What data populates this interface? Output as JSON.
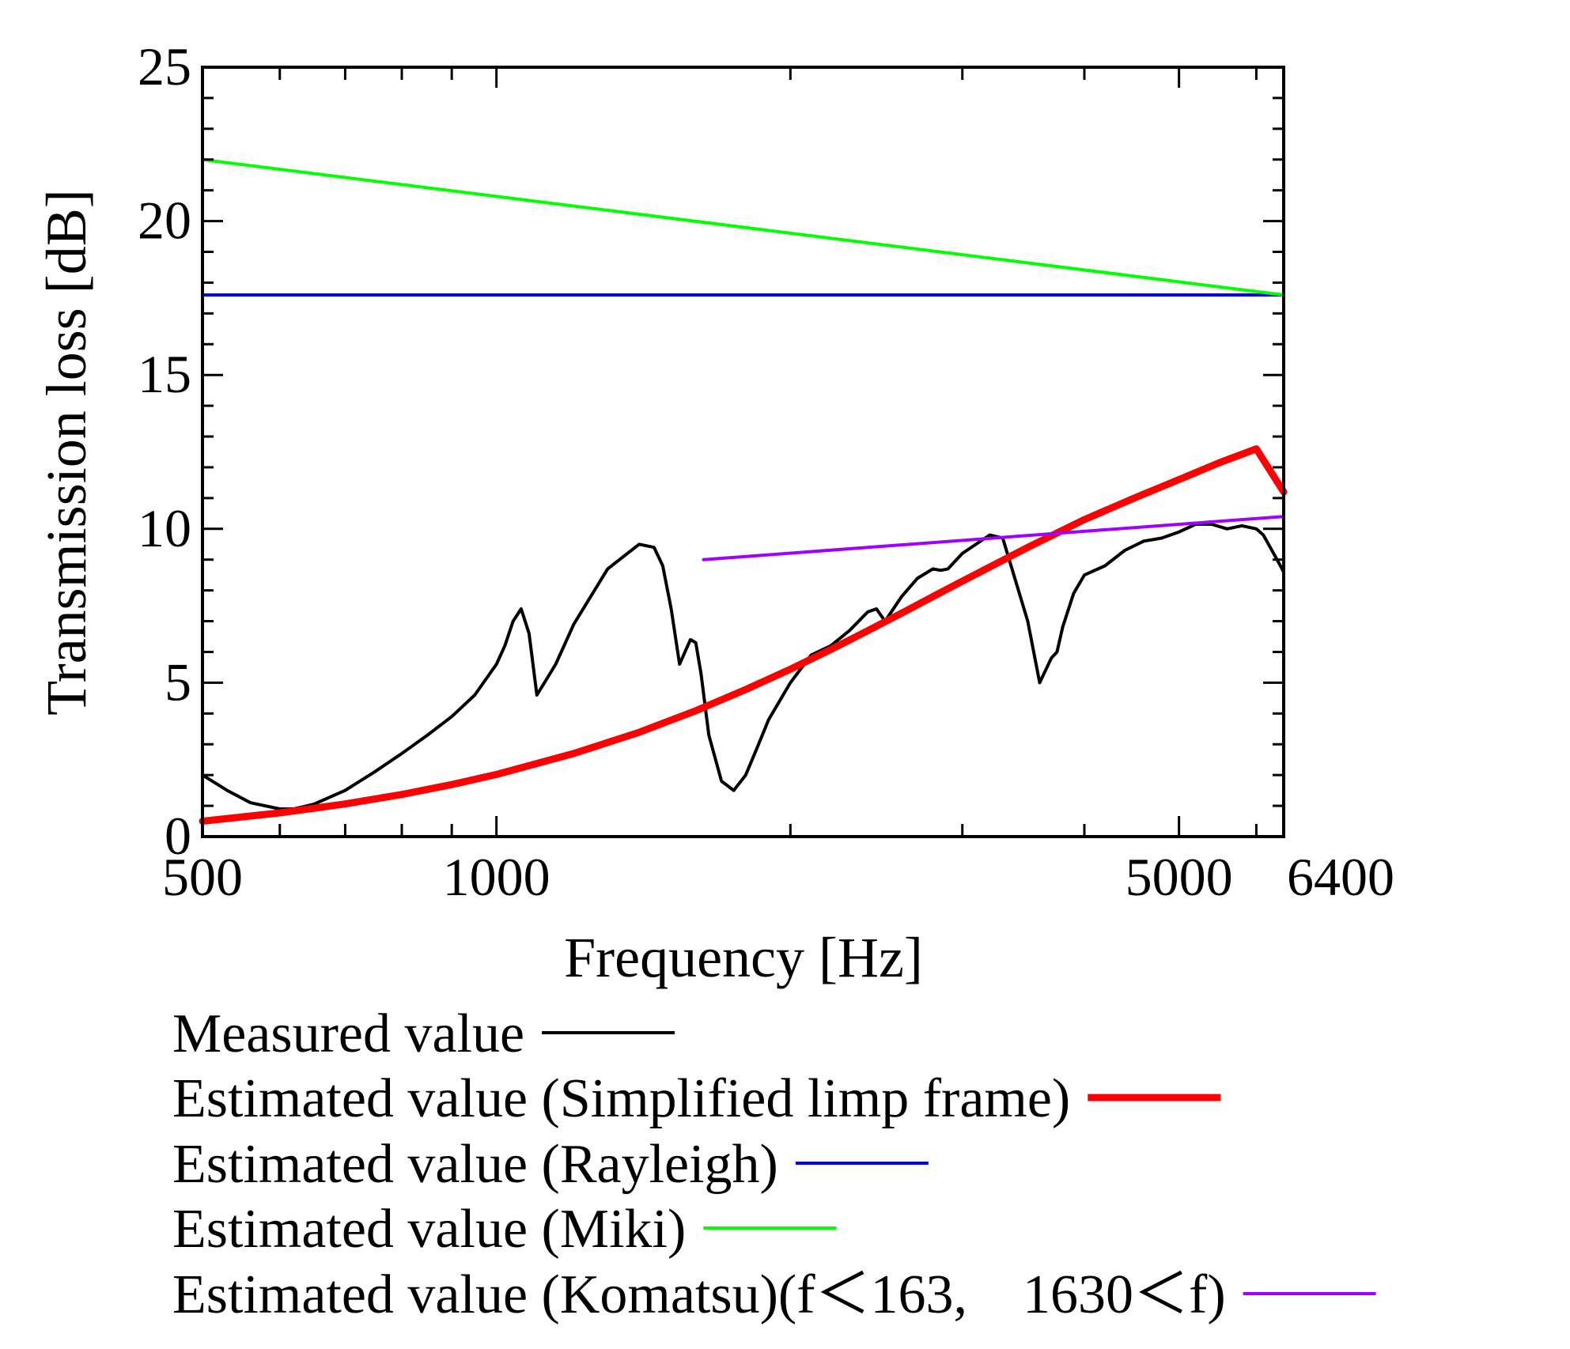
{
  "chart_data": {
    "type": "line",
    "xlabel": "Frequency [Hz]",
    "ylabel": "Transmission loss [dB]",
    "x_scale": "log",
    "xlim": [
      500,
      6400
    ],
    "ylim": [
      0,
      25
    ],
    "x_ticks_labeled": [
      500,
      1000,
      5000,
      6400
    ],
    "x_tick_labels": [
      "500",
      "1000",
      "5000",
      "6400"
    ],
    "x_ticks_minor": [
      600,
      700,
      800,
      900,
      2000,
      3000,
      4000,
      6000
    ],
    "y_ticks": [
      0,
      5,
      10,
      15,
      20,
      25
    ],
    "y_tick_labels": [
      "0",
      "5",
      "10",
      "15",
      "20",
      "25"
    ],
    "grid": false,
    "legend_position": "below",
    "series": [
      {
        "name": "Measured value",
        "color": "#000000",
        "x": [
          500,
          530,
          560,
          600,
          620,
          650,
          700,
          750,
          800,
          850,
          900,
          950,
          1000,
          1020,
          1040,
          1060,
          1080,
          1100,
          1150,
          1200,
          1300,
          1400,
          1450,
          1480,
          1510,
          1540,
          1580,
          1600,
          1620,
          1650,
          1700,
          1750,
          1800,
          1850,
          1900,
          2000,
          2100,
          2200,
          2300,
          2400,
          2450,
          2500,
          2600,
          2700,
          2800,
          2850,
          2900,
          3000,
          3200,
          3300,
          3500,
          3600,
          3700,
          3750,
          3800,
          3900,
          4000,
          4200,
          4400,
          4600,
          4800,
          5000,
          5200,
          5400,
          5600,
          5800,
          6000,
          6100,
          6200,
          6300,
          6400
        ],
        "y": [
          2.0,
          1.5,
          1.1,
          0.9,
          0.9,
          1.05,
          1.5,
          2.1,
          2.7,
          3.3,
          3.9,
          4.6,
          5.6,
          6.2,
          7.0,
          7.4,
          6.6,
          4.6,
          5.6,
          6.9,
          8.7,
          9.5,
          9.4,
          8.8,
          7.4,
          5.6,
          6.4,
          6.3,
          5.3,
          3.3,
          1.8,
          1.5,
          2.0,
          2.9,
          3.8,
          5.0,
          5.9,
          6.2,
          6.7,
          7.3,
          7.4,
          7.0,
          7.8,
          8.4,
          8.7,
          8.65,
          8.7,
          9.2,
          9.8,
          9.7,
          7.0,
          5.0,
          5.8,
          6.0,
          6.8,
          7.9,
          8.5,
          8.8,
          9.3,
          9.6,
          9.7,
          9.9,
          10.15,
          10.15,
          10.0,
          10.1,
          10.0,
          9.8,
          9.4,
          9.0,
          8.6
        ]
      },
      {
        "name": "Estimated value (Simplified limp frame)",
        "color": "#ff0000",
        "x": [
          500,
          600,
          700,
          800,
          900,
          1000,
          1200,
          1400,
          1600,
          1800,
          2000,
          2200,
          2400,
          2600,
          2800,
          3000,
          3200,
          3500,
          4000,
          4500,
          5000,
          5500,
          6000,
          6400
        ],
        "y": [
          0.5,
          0.77,
          1.06,
          1.37,
          1.69,
          2.02,
          2.7,
          3.39,
          4.09,
          4.78,
          5.44,
          6.08,
          6.69,
          7.26,
          7.8,
          8.3,
          8.76,
          9.4,
          10.3,
          11.0,
          11.6,
          12.15,
          12.6,
          11.2
        ]
      },
      {
        "name": "Estimated value (Rayleigh)",
        "color": "#0000ff",
        "x": [
          500,
          6400
        ],
        "y": [
          17.6,
          17.6
        ]
      },
      {
        "name": "Estimated value (Miki)",
        "color": "#00ff00",
        "x": [
          500,
          6400
        ],
        "y": [
          22.0,
          17.6
        ]
      },
      {
        "name": "Estimated value (Komatsu)(f＜163,　1630＜f)",
        "color": "#a000ff",
        "x": [
          1630,
          6400
        ],
        "y": [
          9.0,
          10.4
        ]
      }
    ],
    "legend": [
      {
        "label": "Measured value",
        "color": "#000000",
        "width": 4
      },
      {
        "label": "Estimated value (Simplified limp frame)",
        "color": "#ff0000",
        "width": 9
      },
      {
        "label": "Estimated value (Rayleigh)",
        "color": "#0000ff",
        "width": 4
      },
      {
        "label": "Estimated value (Miki)",
        "color": "#00ff00",
        "width": 4
      },
      {
        "label": "Estimated value (Komatsu)(f＜163,　1630＜f)",
        "color": "#a000ff",
        "width": 4
      }
    ]
  }
}
